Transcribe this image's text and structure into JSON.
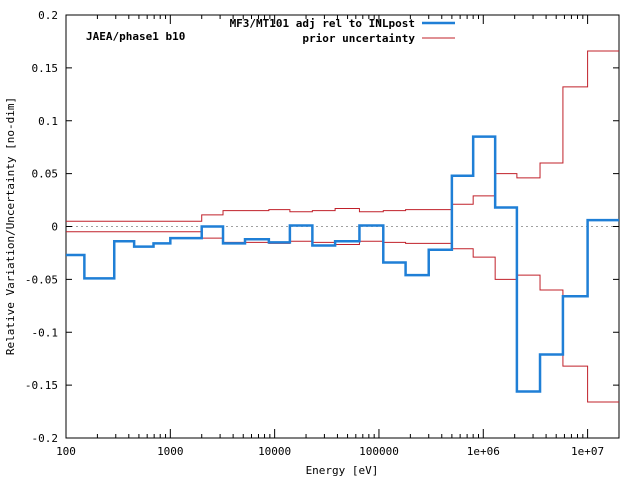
{
  "chart_data": {
    "type": "line",
    "xlabel": "Energy [eV]",
    "ylabel": "Relative Variation/Uncertainty [no-dim]",
    "xscale": "log",
    "xlim": [
      100,
      20000000
    ],
    "ylim": [
      -0.2,
      0.2
    ],
    "grid": false,
    "legend_position": "top-right",
    "annotation": "JAEA/phase1 b10",
    "x_ticks": [
      {
        "value": 100,
        "label": "100"
      },
      {
        "value": 1000,
        "label": "1000"
      },
      {
        "value": 10000,
        "label": "10000"
      },
      {
        "value": 100000,
        "label": "100000"
      },
      {
        "value": 1000000,
        "label": "1e+06"
      },
      {
        "value": 10000000,
        "label": "1e+07"
      }
    ],
    "y_ticks": [
      {
        "value": -0.2,
        "label": "-0.2"
      },
      {
        "value": -0.15,
        "label": "-0.15"
      },
      {
        "value": -0.1,
        "label": "-0.1"
      },
      {
        "value": -0.05,
        "label": "-0.05"
      },
      {
        "value": 0,
        "label": "0"
      },
      {
        "value": 0.05,
        "label": "0.05"
      },
      {
        "value": 0.1,
        "label": "0.1"
      },
      {
        "value": 0.15,
        "label": "0.15"
      },
      {
        "value": 0.2,
        "label": "0.2"
      }
    ],
    "bin_edges": [
      100,
      150,
      290,
      450,
      690,
      1000,
      2000,
      3200,
      5200,
      8800,
      14000,
      23000,
      38000,
      65000,
      110000,
      180000,
      300000,
      500000,
      800000,
      1300000,
      2100000,
      3500000,
      5800000,
      10000000,
      20000000
    ],
    "series": [
      {
        "name": "MF3/MT101 adj rel to INLpost",
        "color": "#1f7fd6",
        "values": [
          -0.027,
          -0.049,
          -0.014,
          -0.019,
          -0.016,
          -0.011,
          0.0,
          -0.016,
          -0.012,
          -0.015,
          0.001,
          -0.018,
          -0.014,
          0.001,
          -0.034,
          -0.046,
          -0.022,
          0.048,
          0.085,
          0.018,
          -0.156,
          -0.121,
          -0.066,
          0.006
        ]
      },
      {
        "name": "prior uncertainty",
        "color": "#c0202a",
        "values": [
          0.005,
          0.005,
          0.005,
          0.005,
          0.005,
          0.005,
          0.011,
          0.015,
          0.015,
          0.016,
          0.014,
          0.015,
          0.017,
          0.014,
          0.015,
          0.016,
          0.016,
          0.021,
          0.029,
          0.05,
          0.046,
          0.06,
          0.132,
          0.166
        ]
      }
    ]
  }
}
